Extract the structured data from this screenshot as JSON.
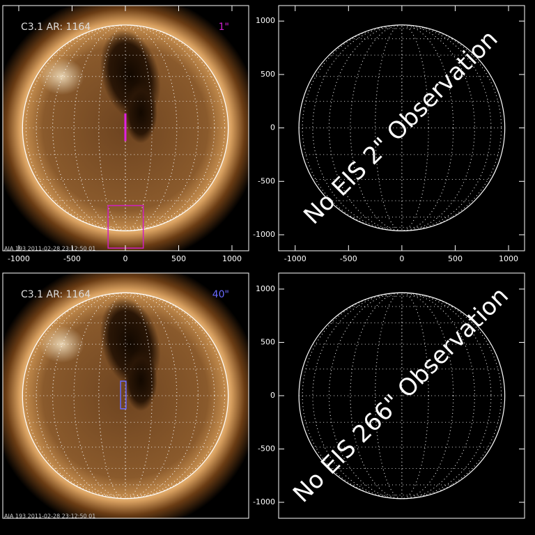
{
  "chart_data": [
    {
      "type": "sun",
      "label": "C3.1 AR: 1164",
      "scale_label": "1\"",
      "scale_color": "#d020d0",
      "footer": "AIA 193 2011-02-28 23:12:50 01",
      "xlim": [
        -1150,
        1157
      ],
      "ylim": [
        -1150,
        1145
      ],
      "xticks": [
        -1000,
        -500,
        0,
        500,
        1000
      ],
      "limb_radius": 965,
      "slits": [
        {
          "color": "#e020e0",
          "x": 0,
          "y": [
            -123,
            136
          ]
        }
      ],
      "boxes": [
        {
          "color": "#d020c0",
          "x": [
            -162,
            168
          ],
          "y": [
            -1125,
            -727
          ]
        }
      ]
    },
    {
      "type": "empty",
      "message": "No EIS 2\" Observation",
      "xlim": [
        -1155,
        1150
      ],
      "ylim": [
        -1150,
        1145
      ],
      "xticks": [
        -1000,
        -500,
        0,
        500,
        1000
      ],
      "yticks": [
        -1000,
        -500,
        0,
        500,
        1000
      ],
      "limb_radius": 965
    },
    {
      "type": "sun",
      "label": "C3.1 AR: 1164",
      "scale_label": "40\"",
      "scale_color": "#6a6aff",
      "footer": "AIA 193 2011-02-28 23:12:50 01",
      "xlim": [
        -1150,
        1157
      ],
      "ylim": [
        -1150,
        1150
      ],
      "limb_radius": 965,
      "boxes": [
        {
          "color": "#6a6aff",
          "x": [
            -45,
            6
          ],
          "y": [
            -123,
            136
          ]
        }
      ]
    },
    {
      "type": "empty",
      "message": "No EIS 266\" Observation",
      "xlim": [
        -1155,
        1150
      ],
      "ylim": [
        -1150,
        1150
      ],
      "yticks": [
        -1000,
        -500,
        0,
        500,
        1000
      ],
      "limb_radius": 965
    }
  ]
}
